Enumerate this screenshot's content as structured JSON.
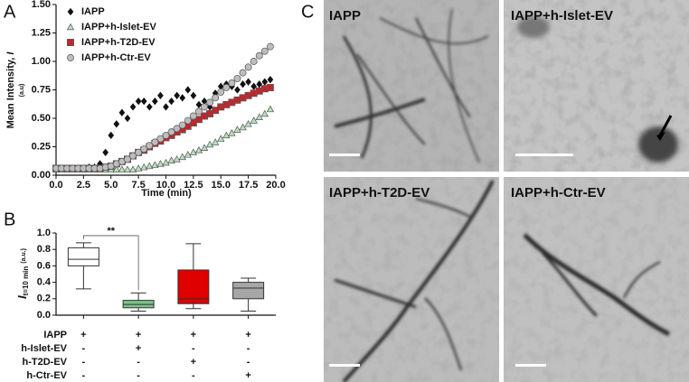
{
  "panels": [
    "A",
    "B",
    "C"
  ],
  "chart_data": [
    {
      "type": "scatter",
      "ylabel": "Mean Intensity,",
      "ylabel_symbol": "I",
      "ylabel_unit": "(a.u)",
      "xlabel": "Time (min)",
      "xlim": [
        0,
        20
      ],
      "ylim": [
        0,
        1.5
      ],
      "xticks": [
        {
          "value": 0,
          "label": "0.0"
        },
        2.5,
        {
          "value": 5,
          "label": "5.0"
        },
        7.5,
        {
          "value": 10,
          "label": "10.0"
        },
        12.5,
        {
          "value": 15,
          "label": "15.0"
        },
        17.5,
        {
          "value": 20,
          "label": "20.0"
        }
      ],
      "yticks": [
        {
          "value": 0,
          "label": "0.00"
        },
        0.25,
        {
          "value": 0.5,
          "label": "0.50"
        },
        0.75,
        {
          "value": 1,
          "label": "1.00"
        },
        1.25,
        {
          "value": 1.5,
          "label": "1.50"
        }
      ],
      "legend": "upper left",
      "x": [
        0,
        0.5,
        1,
        1.5,
        2,
        2.5,
        3,
        3.5,
        4,
        4.5,
        5,
        5.5,
        6,
        6.5,
        7,
        7.5,
        8,
        8.5,
        9,
        9.5,
        10,
        10.5,
        11,
        11.5,
        12,
        12.5,
        13,
        13.5,
        14,
        14.5,
        15,
        15.5,
        16,
        16.5,
        17,
        17.5,
        18,
        18.5,
        19,
        19.5
      ],
      "series": [
        {
          "name": "IAPP",
          "marker": "diamond",
          "color": "#111111",
          "values": [
            0.06,
            0.06,
            0.06,
            0.06,
            0.06,
            0.06,
            0.07,
            0.07,
            0.1,
            0.2,
            0.35,
            0.45,
            0.55,
            0.5,
            0.6,
            0.65,
            0.65,
            0.6,
            0.65,
            0.7,
            0.6,
            0.65,
            0.7,
            0.68,
            0.75,
            0.7,
            0.62,
            0.65,
            0.6,
            0.72,
            0.78,
            0.8,
            0.78,
            0.75,
            0.8,
            0.82,
            0.78,
            0.8,
            0.82,
            0.84
          ]
        },
        {
          "name": "IAPP+h-Islet-EV",
          "marker": "triangle",
          "color": "#b9e0bd",
          "values": [
            0.05,
            0.05,
            0.05,
            0.05,
            0.05,
            0.05,
            0.05,
            0.05,
            0.05,
            0.05,
            0.05,
            0.05,
            0.05,
            0.05,
            0.05,
            0.06,
            0.07,
            0.08,
            0.09,
            0.1,
            0.11,
            0.13,
            0.14,
            0.16,
            0.18,
            0.2,
            0.22,
            0.24,
            0.27,
            0.29,
            0.32,
            0.35,
            0.37,
            0.4,
            0.42,
            0.45,
            0.48,
            0.51,
            0.54,
            0.58
          ]
        },
        {
          "name": "IAPP+h-T2D-EV",
          "marker": "square",
          "color": "#c0272d",
          "values": [
            0.06,
            0.06,
            0.06,
            0.06,
            0.06,
            0.06,
            0.06,
            0.06,
            0.06,
            0.07,
            0.08,
            0.1,
            0.12,
            0.14,
            0.17,
            0.2,
            0.22,
            0.25,
            0.28,
            0.3,
            0.33,
            0.35,
            0.38,
            0.4,
            0.43,
            0.46,
            0.49,
            0.52,
            0.54,
            0.57,
            0.6,
            0.62,
            0.64,
            0.66,
            0.68,
            0.7,
            0.72,
            0.74,
            0.76,
            0.77
          ]
        },
        {
          "name": "IAPP+h-Ctr-EV",
          "marker": "circle",
          "color": "#bdbdbd",
          "values": [
            0.06,
            0.06,
            0.06,
            0.06,
            0.06,
            0.06,
            0.06,
            0.06,
            0.06,
            0.07,
            0.08,
            0.1,
            0.12,
            0.14,
            0.17,
            0.2,
            0.23,
            0.26,
            0.29,
            0.32,
            0.35,
            0.38,
            0.41,
            0.44,
            0.48,
            0.52,
            0.56,
            0.6,
            0.64,
            0.68,
            0.73,
            0.77,
            0.81,
            0.85,
            0.9,
            0.95,
            1.0,
            1.05,
            1.09,
            1.13
          ]
        }
      ]
    },
    {
      "type": "box",
      "ylabel_symbol": "I",
      "ylabel_subscript": "t=10 min",
      "ylabel_unit": "(a.u.)",
      "ylim": [
        0,
        1
      ],
      "yticks": [
        {
          "value": 0,
          "label": "0.0"
        },
        0.2,
        0.4,
        0.6,
        0.8,
        {
          "value": 1,
          "label": "1.0"
        }
      ],
      "boxes": [
        {
          "min": 0.32,
          "q1": 0.6,
          "median": 0.68,
          "q3": 0.82,
          "max": 0.88,
          "color": "#ffffff"
        },
        {
          "min": 0.05,
          "q1": 0.09,
          "median": 0.13,
          "q3": 0.18,
          "max": 0.27,
          "color": "#7dc38a"
        },
        {
          "min": 0.08,
          "q1": 0.14,
          "median": 0.2,
          "q3": 0.55,
          "max": 0.87,
          "color": "#e00000"
        },
        {
          "min": 0.05,
          "q1": 0.2,
          "median": 0.33,
          "q3": 0.4,
          "max": 0.45,
          "color": "#a6a6a6"
        }
      ],
      "annotations": [
        {
          "text": "**"
        }
      ],
      "conditions": [
        {
          "name": "IAPP",
          "signs": [
            "+",
            "+",
            "+",
            "+"
          ]
        },
        {
          "name": "h-Islet-EV",
          "signs": [
            "-",
            "+",
            "-",
            "-"
          ]
        },
        {
          "name": "h-T2D-EV",
          "signs": [
            "-",
            "-",
            "+",
            "-"
          ]
        },
        {
          "name": "h-Ctr-EV",
          "signs": [
            "-",
            "-",
            "-",
            "+"
          ]
        }
      ]
    }
  ],
  "images": [
    {
      "label": "IAPP"
    },
    {
      "label": "IAPP+h-Islet-EV"
    },
    {
      "label": "IAPP+h-T2D-EV"
    },
    {
      "label": "IAPP+h-Ctr-EV"
    }
  ]
}
